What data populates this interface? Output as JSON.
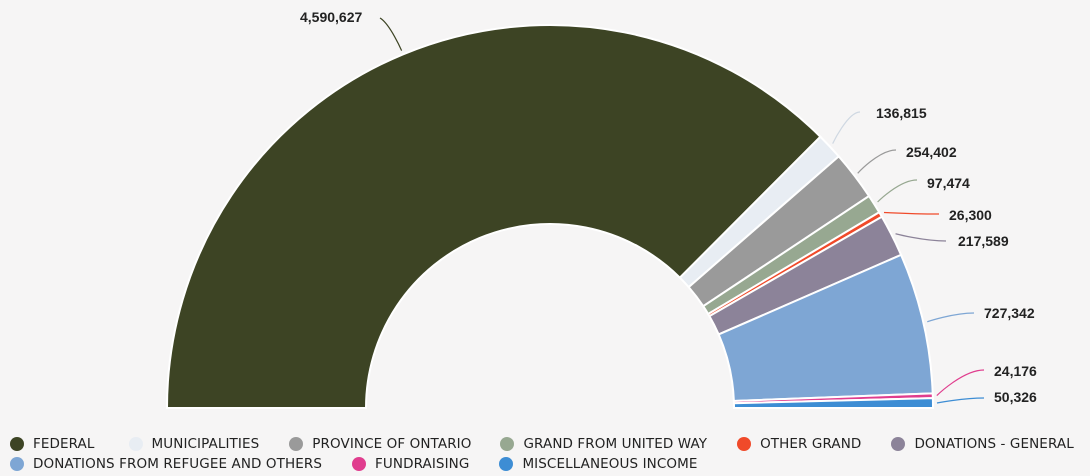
{
  "chart_data": {
    "type": "pie",
    "subtype": "semi-donut",
    "series": [
      {
        "name": "FEDERAL",
        "value": 4590627,
        "label": "4,590,627",
        "color": "#3d4424"
      },
      {
        "name": "MUNICIPALITIES",
        "value": 136815,
        "label": "136,815",
        "color": "#e8edf3"
      },
      {
        "name": "PROVINCE OF ONTARIO",
        "value": 254402,
        "label": "254,402",
        "color": "#9a9a9a"
      },
      {
        "name": "GRAND FROM UNITED WAY",
        "value": 97474,
        "label": "97,474",
        "color": "#97a891"
      },
      {
        "name": "OTHER GRAND",
        "value": 26300,
        "label": "26,300",
        "color": "#f04a2a"
      },
      {
        "name": "DONATIONS - GENERAL",
        "value": 217589,
        "label": "217,589",
        "color": "#8c8399"
      },
      {
        "name": "DONATIONS FROM REFUGEE AND OTHERS",
        "value": 727342,
        "label": "727,342",
        "color": "#7ea6d4"
      },
      {
        "name": "FUNDRAISING",
        "value": 24176,
        "label": "24,176",
        "color": "#e03d8e"
      },
      {
        "name": "MISCELLANEOUS INCOME",
        "value": 50326,
        "label": "50,326",
        "color": "#3d8dd4"
      }
    ],
    "legend": {
      "position": "bottom",
      "rows": [
        [
          0,
          1,
          2,
          3,
          4,
          5
        ],
        [
          6,
          7,
          8
        ]
      ]
    }
  }
}
